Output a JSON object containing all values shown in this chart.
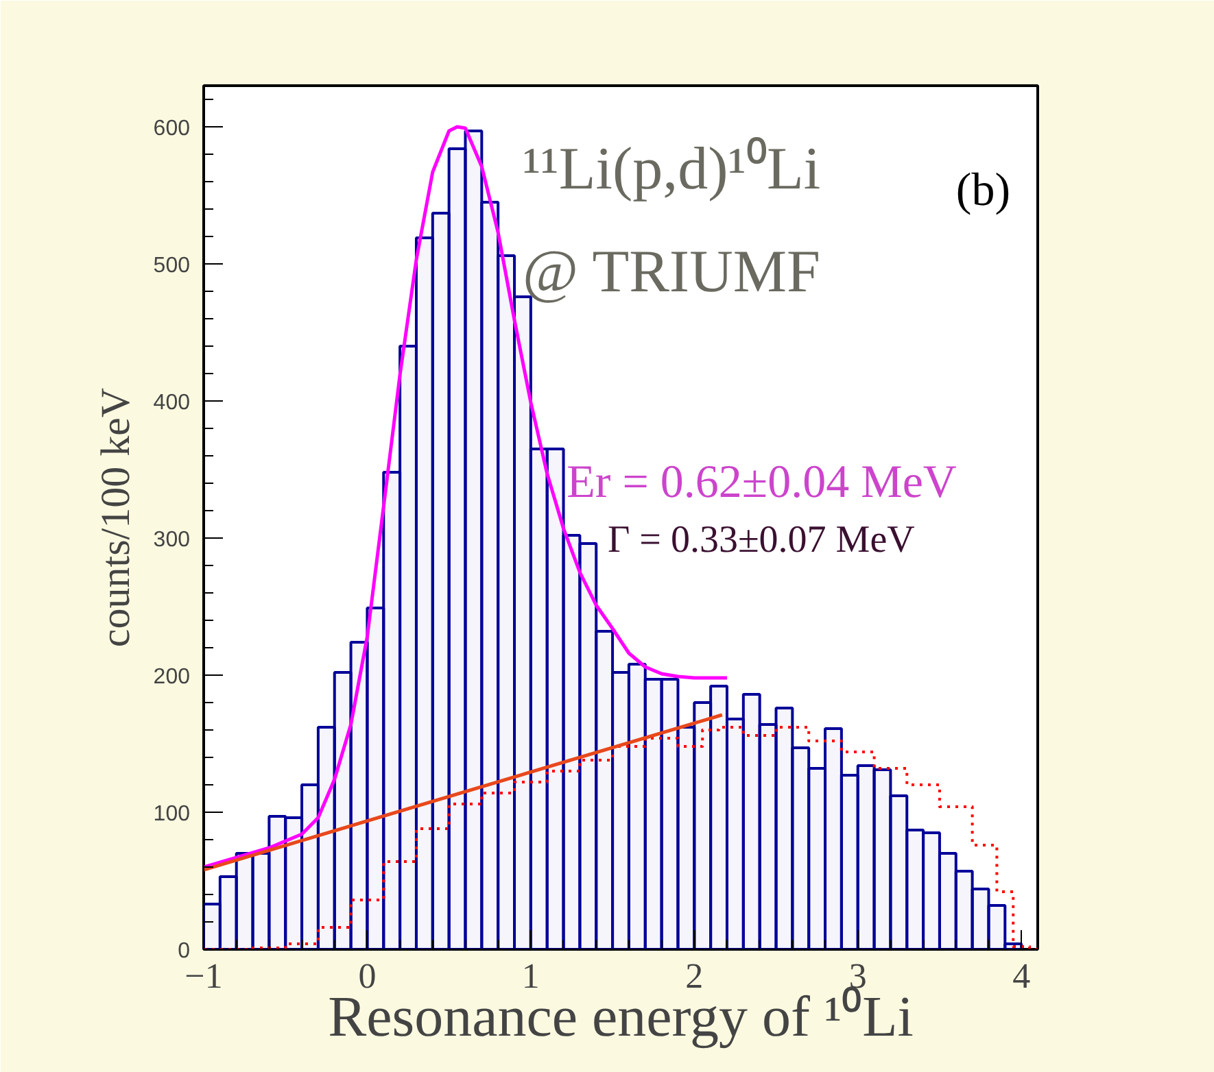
{
  "chart_data": {
    "type": "histogram",
    "xlabel": "Resonance energy of ¹⁰Li",
    "ylabel": "counts/100 keV",
    "bins": [
      -1.0,
      -0.9,
      -0.8,
      -0.7,
      -0.6,
      -0.5,
      -0.4,
      -0.3,
      -0.2,
      -0.1,
      0.0,
      0.1,
      0.2,
      0.3,
      0.4,
      0.5,
      0.6,
      0.7,
      0.8,
      0.9,
      1.0,
      1.1,
      1.2,
      1.3,
      1.4,
      1.5,
      1.6,
      1.7,
      1.8,
      1.9,
      2.0,
      2.1,
      2.2,
      2.3,
      2.4,
      2.5,
      2.6,
      2.7,
      2.8,
      2.9,
      3.0,
      3.1,
      3.2,
      3.3,
      3.4,
      3.5,
      3.6,
      3.7,
      3.8,
      3.9,
      4.0
    ],
    "values": [
      33,
      53,
      70,
      70,
      97,
      96,
      120,
      162,
      202,
      224,
      249,
      348,
      440,
      519,
      537,
      584,
      597,
      545,
      506,
      476,
      365,
      365,
      302,
      296,
      232,
      202,
      208,
      197,
      197,
      162,
      180,
      192,
      168,
      186,
      164,
      176,
      147,
      132,
      161,
      127,
      134,
      131,
      112,
      87,
      85,
      70,
      57,
      44,
      32,
      4
    ],
    "color": "#000099",
    "series": [
      {
        "type": "step",
        "color": "#ff0000",
        "line_style": "dotted",
        "x": [
          -1.0,
          -0.8,
          -0.6,
          -0.4,
          -0.2,
          0.0,
          0.2,
          0.4,
          0.6,
          0.8,
          1.0,
          1.2,
          1.4,
          1.6,
          1.8,
          2.0,
          2.1,
          2.2,
          2.4,
          2.6,
          2.8,
          3.0,
          3.2,
          3.4,
          3.6,
          3.8,
          3.9,
          4.0,
          4.1
        ],
        "values": [
          0,
          0,
          1,
          4,
          16,
          36,
          64,
          88,
          106,
          114,
          122,
          130,
          138,
          148,
          154,
          148,
          160,
          162,
          156,
          162,
          152,
          144,
          132,
          120,
          104,
          76,
          42,
          2,
          0
        ]
      },
      {
        "type": "line",
        "color": "#ff00ff",
        "line_style": "solid",
        "x": [
          -1.0,
          -0.6,
          -0.4,
          -0.3,
          -0.2,
          -0.1,
          0.0,
          0.1,
          0.2,
          0.3,
          0.4,
          0.5,
          0.55,
          0.6,
          0.7,
          0.8,
          0.9,
          1.0,
          1.1,
          1.2,
          1.3,
          1.4,
          1.5,
          1.6,
          1.7,
          1.8,
          1.9,
          2.0,
          2.2
        ],
        "values": [
          60,
          74,
          84,
          96,
          124,
          164,
          228,
          323,
          419,
          503,
          567,
          597,
          600,
          599,
          571,
          523,
          459,
          399,
          347,
          307,
          275,
          251,
          234,
          216,
          206,
          201,
          199,
          198,
          198
        ]
      },
      {
        "type": "line",
        "color": "#e8481c",
        "line_style": "solid",
        "x": [
          -1.0,
          2.17
        ],
        "values": [
          58,
          171
        ]
      }
    ],
    "annotations": [
      "¹¹Li(p,d)¹⁰Li",
      "@ TRIUMF",
      "(b)",
      "Er = 0.62±0.04 MeV",
      "Γ = 0.33±0.07 MeV"
    ],
    "xlim": [
      -1.0,
      4.1
    ],
    "ylim": [
      0,
      630
    ],
    "xticks": [
      -1,
      0,
      1,
      2,
      3,
      4
    ],
    "yticks": [
      0,
      100,
      200,
      300,
      400,
      500,
      600
    ],
    "grid": false
  }
}
